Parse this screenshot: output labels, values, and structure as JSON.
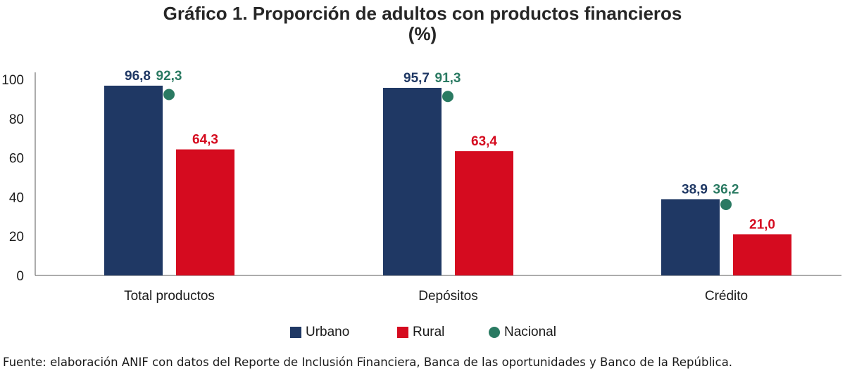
{
  "chart_data": {
    "type": "bar",
    "title": "Gráfico 1. Proporción de adultos con productos financieros",
    "subtitle": "(%)",
    "categories": [
      "Total productos",
      "Depósitos",
      "Crédito"
    ],
    "series": [
      {
        "name": "Urbano",
        "kind": "bar",
        "color": "#1f3864",
        "values": [
          96.8,
          95.7,
          38.9
        ],
        "labels": [
          "96,8",
          "95,7",
          "38,9"
        ]
      },
      {
        "name": "Rural",
        "kind": "bar",
        "color": "#d50b1f",
        "values": [
          64.3,
          63.4,
          21.0
        ],
        "labels": [
          "64,3",
          "63,4",
          "21,0"
        ]
      },
      {
        "name": "Nacional",
        "kind": "marker",
        "color": "#2a7a62",
        "values": [
          92.3,
          91.3,
          36.2
        ],
        "labels": [
          "92,3",
          "91,3",
          "36,2"
        ]
      }
    ],
    "ylim": [
      0,
      100
    ],
    "yticks": [
      "0",
      "20",
      "40",
      "60",
      "80",
      "100"
    ],
    "ytick_values": [
      0,
      20,
      40,
      60,
      80,
      100
    ],
    "grid": false,
    "legend_position": "bottom",
    "source": "Fuente: elaboración ANIF con datos del Reporte de Inclusión Financiera, Banca de las oportunidades y Banco de la República."
  }
}
